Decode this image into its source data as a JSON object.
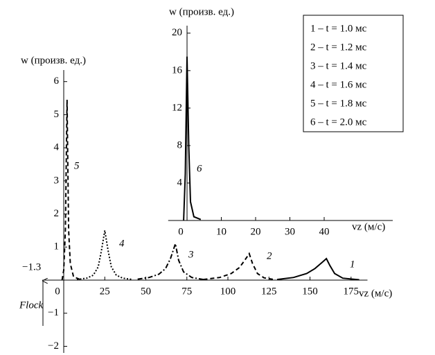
{
  "chart_data": [
    {
      "type": "line",
      "y_label": "w (произв. ед.)",
      "x_label": "vz (м/с)",
      "xlim": [
        -13,
        185
      ],
      "ylim": [
        -2.2,
        6.35
      ],
      "xticks": [
        0,
        25,
        50,
        75,
        100,
        125,
        150,
        175
      ],
      "yticks": [
        {
          "value": -2,
          "label": "−2"
        },
        {
          "value": -1,
          "label": "−1"
        },
        1,
        2,
        3,
        4,
        5,
        6
      ],
      "annotations": [
        "−1.3",
        "Flock"
      ],
      "series": [
        {
          "name": "1 – t = 1.0 мс",
          "label": "1",
          "color": "#000000",
          "dash": "solid",
          "x": [
            130,
            140,
            148,
            153,
            157,
            160,
            162,
            165,
            170,
            180
          ],
          "values": [
            0.02,
            0.08,
            0.2,
            0.35,
            0.52,
            0.65,
            0.45,
            0.2,
            0.06,
            0.01
          ]
        },
        {
          "name": "2 – t = 1.2 мс",
          "label": "2",
          "color": "#000000",
          "dash": "dashed",
          "x": [
            85,
            95,
            102,
            107,
            110,
            113,
            115,
            118,
            122,
            128
          ],
          "values": [
            0.02,
            0.08,
            0.2,
            0.38,
            0.58,
            0.8,
            0.5,
            0.2,
            0.07,
            0.02
          ]
        },
        {
          "name": "3 – t = 1.4 мс",
          "label": "3",
          "color": "#000000",
          "dash": "dashdot",
          "x": [
            45,
            52,
            58,
            62,
            65,
            68,
            70,
            73,
            78,
            85
          ],
          "values": [
            0.03,
            0.08,
            0.18,
            0.35,
            0.65,
            1.1,
            0.6,
            0.25,
            0.08,
            0.02
          ]
        },
        {
          "name": "4 – t = 1.6 мс",
          "label": "4",
          "color": "#000000",
          "dash": "dotted",
          "x": [
            8,
            14,
            18,
            21,
            23,
            25,
            27,
            29,
            32,
            36,
            42
          ],
          "values": [
            0.02,
            0.06,
            0.15,
            0.4,
            0.9,
            1.5,
            0.9,
            0.4,
            0.15,
            0.06,
            0.02
          ]
        },
        {
          "name": "5 – t = 1.8 мс",
          "label": "5",
          "color": "#000000",
          "dash": "dashed",
          "x": [
            -1,
            0,
            1,
            1.5,
            2,
            2.5,
            3,
            4,
            6,
            10
          ],
          "values": [
            0,
            0.3,
            1.5,
            3.5,
            5.45,
            3.5,
            1.5,
            0.5,
            0.1,
            0.02
          ]
        }
      ]
    },
    {
      "type": "line",
      "y_label": "w (произв. ед.)",
      "x_label": "vz (м/с)",
      "xlim": [
        -5.5,
        60
      ],
      "ylim": [
        0,
        20.8
      ],
      "xticks": [
        0,
        10,
        20,
        30,
        40
      ],
      "yticks": [
        4,
        8,
        12,
        16,
        20
      ],
      "series": [
        {
          "name": "6 – t = 2.0 мс",
          "label": "6",
          "color": "#000000",
          "dash": "solid",
          "x": [
            -1,
            -0.5,
            0,
            0.5,
            1,
            2,
            4
          ],
          "values": [
            0,
            5,
            17.5,
            8,
            2,
            0.4,
            0.1
          ]
        }
      ]
    }
  ]
}
